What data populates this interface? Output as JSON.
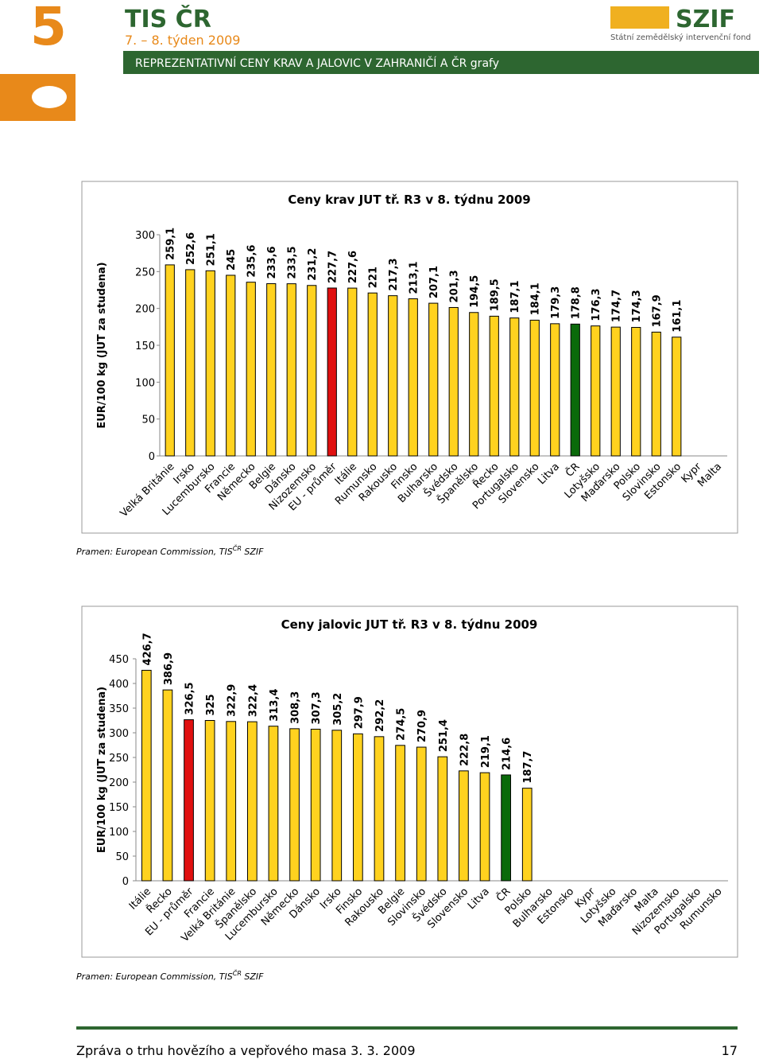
{
  "header": {
    "page_number": "5",
    "brand": "TIS ČR",
    "week": "7. – 8. týden 2009",
    "subtitle": "REPREZENTATIVNÍ CENY KRAV A JALOVIC V ZAHRANIČÍ A ČR   grafy",
    "logo": "SZIF",
    "logo_subtitle": "Státní zemědělský intervenční fond"
  },
  "chart_data": [
    {
      "type": "bar",
      "title": "Ceny krav JUT  tř. R3  v 8. týdnu 2009",
      "y_label": "EUR/100 kg (JUT za studena)",
      "categories": [
        "Velká Británie",
        "Irsko",
        "Lucembursko",
        "Francie",
        "Německo",
        "Belgie",
        "Dánsko",
        "Nizozemsko",
        "EU - průměr",
        "Itálie",
        "Rumunsko",
        "Rakousko",
        "Finsko",
        "Bulharsko",
        "Švédsko",
        "Španělsko",
        "Řecko",
        "Portugalsko",
        "Slovensko",
        "Litva",
        "ČR",
        "Lotyšsko",
        "Maďarsko",
        "Polsko",
        "Slovinsko",
        "Estonsko",
        "Kypr",
        "Malta"
      ],
      "values": [
        259.1,
        252.6,
        251.1,
        245,
        235.6,
        233.6,
        233.5,
        231.2,
        227.7,
        227.6,
        221,
        217.3,
        213.1,
        207.1,
        201.3,
        194.5,
        189.5,
        187.1,
        184.1,
        179.3,
        178.8,
        176.3,
        174.7,
        174.3,
        167.9,
        161.1,
        null,
        null
      ],
      "value_labels": [
        "259,1",
        "252,6",
        "251,1",
        "245",
        "235,6",
        "233,6",
        "233,5",
        "231,2",
        "227,7",
        "227,6",
        "221",
        "217,3",
        "213,1",
        "207,1",
        "201,3",
        "194,5",
        "189,5",
        "187,1",
        "184,1",
        "179,3",
        "178,8",
        "176,3",
        "174,7",
        "174,3",
        "167,9",
        "161,1",
        null,
        null
      ],
      "colors": [
        "#ffd21f",
        "#ffd21f",
        "#ffd21f",
        "#ffd21f",
        "#ffd21f",
        "#ffd21f",
        "#ffd21f",
        "#ffd21f",
        "#e01010",
        "#ffd21f",
        "#ffd21f",
        "#ffd21f",
        "#ffd21f",
        "#ffd21f",
        "#ffd21f",
        "#ffd21f",
        "#ffd21f",
        "#ffd21f",
        "#ffd21f",
        "#ffd21f",
        "#0a6a0a",
        "#ffd21f",
        "#ffd21f",
        "#ffd21f",
        "#ffd21f",
        "#ffd21f",
        null,
        null
      ],
      "ylim": [
        0,
        300
      ],
      "yticks": [
        0,
        50,
        100,
        150,
        200,
        250,
        300
      ],
      "grid": false
    },
    {
      "type": "bar",
      "title": "Ceny jalovic JUT  tř. R3  v 8. týdnu 2009",
      "y_label": "EUR/100 kg (JUT za studena)",
      "categories": [
        "Itálie",
        "Řecko",
        "EU - průměr",
        "Francie",
        "Velká Británie",
        "Španělsko",
        "Lucembursko",
        "Německo",
        "Dánsko",
        "Irsko",
        "Finsko",
        "Rakousko",
        "Belgie",
        "Slovinsko",
        "Švédsko",
        "Slovensko",
        "Litva",
        "ČR",
        "Polsko",
        "Bulharsko",
        "Estonsko",
        "Kypr",
        "Lotyšsko",
        "Maďarsko",
        "Malta",
        "Nizozemsko",
        "Portugalsko",
        "Rumunsko"
      ],
      "values": [
        426.7,
        386.9,
        326.5,
        325,
        322.9,
        322.4,
        313.4,
        308.3,
        307.3,
        305.2,
        297.9,
        292.2,
        274.5,
        270.9,
        251.4,
        222.8,
        219.1,
        214.6,
        187.7,
        null,
        null,
        null,
        null,
        null,
        null,
        null,
        null,
        null
      ],
      "value_labels": [
        "426,7",
        "386,9",
        "326,5",
        "325",
        "322,9",
        "322,4",
        "313,4",
        "308,3",
        "307,3",
        "305,2",
        "297,9",
        "292,2",
        "274,5",
        "270,9",
        "251,4",
        "222,8",
        "219,1",
        "214,6",
        "187,7",
        null,
        null,
        null,
        null,
        null,
        null,
        null,
        null,
        null
      ],
      "colors": [
        "#ffd21f",
        "#ffd21f",
        "#e01010",
        "#ffd21f",
        "#ffd21f",
        "#ffd21f",
        "#ffd21f",
        "#ffd21f",
        "#ffd21f",
        "#ffd21f",
        "#ffd21f",
        "#ffd21f",
        "#ffd21f",
        "#ffd21f",
        "#ffd21f",
        "#ffd21f",
        "#ffd21f",
        "#0a6a0a",
        "#ffd21f",
        null,
        null,
        null,
        null,
        null,
        null,
        null,
        null,
        null
      ],
      "ylim": [
        0,
        450
      ],
      "yticks": [
        0,
        50,
        100,
        150,
        200,
        250,
        300,
        350,
        400,
        450
      ],
      "grid": false
    }
  ],
  "sources": [
    {
      "prefix": "Pramen: European Commission, TIS",
      "sup": "ČR",
      "suffix": " SZIF"
    },
    {
      "prefix": "Pramen: European Commission, TIS",
      "sup": "ČR",
      "suffix": " SZIF"
    }
  ],
  "footer": {
    "text": "Zpráva o trhu hovězího a vepřového masa 3. 3. 2009",
    "page": "17"
  }
}
